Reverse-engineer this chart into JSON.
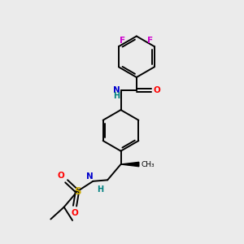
{
  "bg_color": "#ebebeb",
  "atom_colors": {
    "C": "#000000",
    "N": "#0000cc",
    "N2": "#008080",
    "O": "#ff0000",
    "F": "#cc00cc",
    "S": "#ccaa00",
    "H": "#000000"
  },
  "figsize": [
    3.0,
    3.0
  ],
  "dpi": 100
}
